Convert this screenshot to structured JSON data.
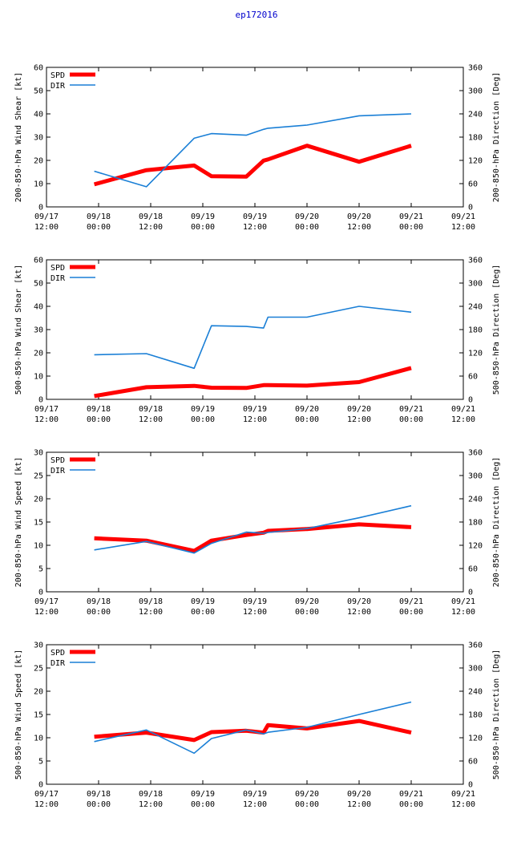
{
  "title": "ep172016",
  "colors": {
    "spd": "#ff0000",
    "dir": "#1a7fd6",
    "title": "#0000cc",
    "axis": "#000000"
  },
  "legend": {
    "spd": "SPD",
    "dir": "DIR"
  },
  "x_axis": {
    "range_hours": [
      0,
      96
    ],
    "ticks": [
      {
        "hours": 0,
        "date": "09/17",
        "time": "12:00"
      },
      {
        "hours": 12,
        "date": "09/18",
        "time": "00:00"
      },
      {
        "hours": 24,
        "date": "09/18",
        "time": "12:00"
      },
      {
        "hours": 36,
        "date": "09/19",
        "time": "00:00"
      },
      {
        "hours": 48,
        "date": "09/19",
        "time": "12:00"
      },
      {
        "hours": 60,
        "date": "09/20",
        "time": "00:00"
      },
      {
        "hours": 72,
        "date": "09/20",
        "time": "12:00"
      },
      {
        "hours": 84,
        "date": "09/21",
        "time": "00:00"
      },
      {
        "hours": 96,
        "date": "09/21",
        "time": "12:00"
      }
    ]
  },
  "chart_data": [
    {
      "type": "line",
      "ylabel": "200-850-hPa Wind Shear [kt]",
      "y2label": "200-850-hPa Direction [Deg]",
      "ylim": [
        0,
        60
      ],
      "yticks": [
        0,
        10,
        20,
        30,
        40,
        50,
        60
      ],
      "y2lim": [
        0,
        360
      ],
      "y2ticks": [
        0,
        60,
        120,
        180,
        240,
        300,
        360
      ],
      "x_hours": [
        11,
        23,
        34,
        38,
        46,
        50,
        51,
        60,
        72,
        84
      ],
      "series": [
        {
          "name": "SPD",
          "axis": "left",
          "values": [
            9.7,
            15.8,
            17.8,
            13.2,
            13.0,
            19.9,
            20.4,
            26.3,
            19.4,
            26.3
          ]
        },
        {
          "name": "DIR",
          "axis": "right",
          "values": [
            92,
            52,
            177,
            189,
            185,
            200,
            203,
            211,
            235,
            240
          ]
        }
      ]
    },
    {
      "type": "line",
      "ylabel": "500-850-hPa Wind Shear [kt]",
      "y2label": "500-850-hPa Direction [Deg]",
      "ylim": [
        0,
        60
      ],
      "yticks": [
        0,
        10,
        20,
        30,
        40,
        50,
        60
      ],
      "y2lim": [
        0,
        360
      ],
      "y2ticks": [
        0,
        60,
        120,
        180,
        240,
        300,
        360
      ],
      "x_hours": [
        11,
        23,
        34,
        38,
        46,
        50,
        51,
        60,
        72,
        84
      ],
      "series": [
        {
          "name": "SPD",
          "axis": "left",
          "values": [
            1.4,
            5.2,
            5.8,
            5.0,
            4.9,
            6.1,
            6.1,
            5.9,
            7.4,
            13.5
          ]
        },
        {
          "name": "DIR",
          "axis": "right",
          "values": [
            115,
            118,
            80,
            190,
            188,
            184,
            212,
            212,
            240,
            225
          ]
        }
      ]
    },
    {
      "type": "line",
      "ylabel": "200-850-hPa Wind Speed [kt]",
      "y2label": "200-850-hPa Direction [Deg]",
      "ylim": [
        0,
        30
      ],
      "yticks": [
        0,
        5,
        10,
        15,
        20,
        25,
        30
      ],
      "y2lim": [
        0,
        360
      ],
      "y2ticks": [
        0,
        60,
        120,
        180,
        240,
        300,
        360
      ],
      "x_hours": [
        11,
        23,
        34,
        38,
        46,
        50,
        51,
        60,
        72,
        84
      ],
      "series": [
        {
          "name": "SPD",
          "axis": "left",
          "values": [
            11.5,
            11.0,
            8.8,
            11.0,
            12.2,
            12.7,
            13.1,
            13.5,
            14.5,
            13.9
          ]
        },
        {
          "name": "DIR",
          "axis": "right",
          "values": [
            108,
            130,
            100,
            125,
            154,
            151,
            153,
            163,
            191,
            222
          ]
        }
      ]
    },
    {
      "type": "line",
      "ylabel": "500-850-hPa Wind Speed [kt]",
      "y2label": "500-850-hPa Direction [Deg]",
      "ylim": [
        0,
        30
      ],
      "yticks": [
        0,
        5,
        10,
        15,
        20,
        25,
        30
      ],
      "y2lim": [
        0,
        360
      ],
      "y2ticks": [
        0,
        60,
        120,
        180,
        240,
        300,
        360
      ],
      "x_hours": [
        11,
        23,
        34,
        38,
        46,
        50,
        51,
        60,
        72,
        84
      ],
      "series": [
        {
          "name": "SPD",
          "axis": "left",
          "values": [
            10.2,
            11.1,
            9.5,
            11.2,
            11.5,
            11.1,
            12.7,
            12.0,
            13.6,
            11.1
          ]
        },
        {
          "name": "DIR",
          "axis": "right",
          "values": [
            110,
            140,
            80,
            118,
            140,
            130,
            134,
            147,
            180,
            212
          ]
        }
      ]
    }
  ]
}
